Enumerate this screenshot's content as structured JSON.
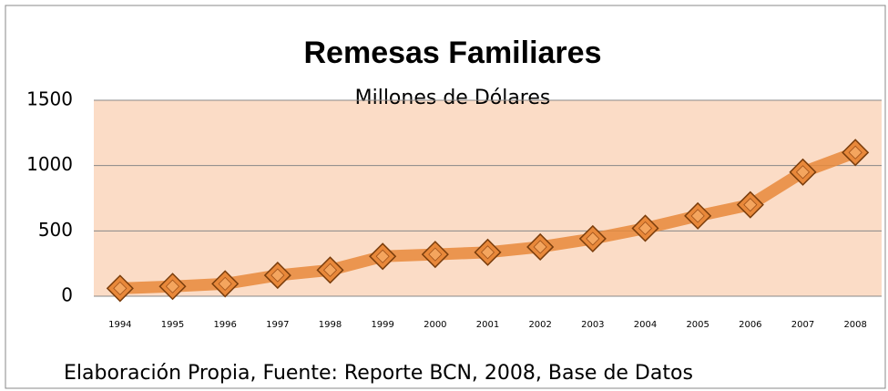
{
  "chart_data": {
    "type": "line",
    "title": "Remesas Familiares",
    "subtitle": "Millones de Dólares",
    "footer": "Elaboración Propia, Fuente: Reporte BCN, 2008, Base de Datos",
    "categories": [
      "1994",
      "1995",
      "1996",
      "1997",
      "1998",
      "1999",
      "2000",
      "2001",
      "2002",
      "2003",
      "2004",
      "2005",
      "2006",
      "2007",
      "2008"
    ],
    "series": [
      {
        "name": "Remesas",
        "color": "#e8883a",
        "values": [
          60,
          75,
          95,
          160,
          200,
          305,
          320,
          336,
          377,
          440,
          520,
          615,
          700,
          950,
          1100
        ]
      }
    ],
    "ylim": [
      0,
      1500
    ],
    "yticks": [
      0,
      500,
      1000,
      1500
    ],
    "grid": true
  }
}
